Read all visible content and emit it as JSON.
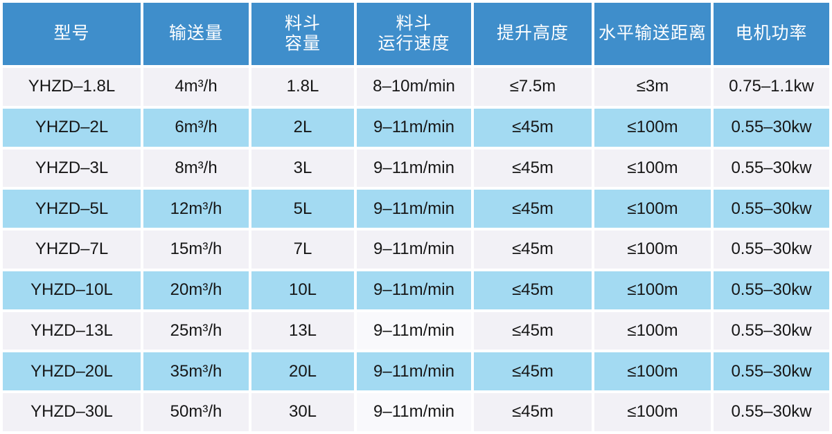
{
  "chart_data": {
    "type": "table",
    "columns": [
      "型号",
      "输送量",
      "料斗容量",
      "料斗运行速度",
      "提升高度",
      "水平输送距离",
      "电机功率"
    ],
    "rows": [
      [
        "YHZD–1.8L",
        "4m³/h",
        "1.8L",
        "8–10m/min",
        "≤7.5m",
        "≤3m",
        "0.75–1.1kw"
      ],
      [
        "YHZD–2L",
        "6m³/h",
        "2L",
        "9–11m/min",
        "≤45m",
        "≤100m",
        "0.55–30kw"
      ],
      [
        "YHZD–3L",
        "8m³/h",
        "3L",
        "9–11m/min",
        "≤45m",
        "≤100m",
        "0.55–30kw"
      ],
      [
        "YHZD–5L",
        "12m³/h",
        "5L",
        "9–11m/min",
        "≤45m",
        "≤100m",
        "0.55–30kw"
      ],
      [
        "YHZD–7L",
        "15m³/h",
        "7L",
        "9–11m/min",
        "≤45m",
        "≤100m",
        "0.55–30kw"
      ],
      [
        "YHZD–10L",
        "20m³/h",
        "10L",
        "9–11m/min",
        "≤45m",
        "≤100m",
        "0.55–30kw"
      ],
      [
        "YHZD–13L",
        "25m³/h",
        "13L",
        "9–11m/min",
        "≤45m",
        "≤100m",
        "0.55–30kw"
      ],
      [
        "YHZD–20L",
        "35m³/h",
        "20L",
        "9–11m/min",
        "≤45m",
        "≤100m",
        "0.55–30kw"
      ],
      [
        "YHZD–30L",
        "50m³/h",
        "30L",
        "9–11m/min",
        "≤45m",
        "≤100m",
        "0.55–30kw"
      ]
    ]
  },
  "table": {
    "header": {
      "model": "型号",
      "capacity": "输送量",
      "hopper_volume": "料斗\n容量",
      "hopper_speed": "料斗\n运行速度",
      "lift_height": "提升高度",
      "horizontal_distance": "水平输送距离",
      "motor_power": "电机功率"
    },
    "rows": [
      {
        "tint": "white",
        "light_speed_cell": false,
        "cells": [
          "YHZD–1.8L",
          "4m³/h",
          "1.8L",
          "8–10m/min",
          "≤7.5m",
          "≤3m",
          "0.75–1.1kw"
        ]
      },
      {
        "tint": "blue",
        "light_speed_cell": false,
        "cells": [
          "YHZD–2L",
          "6m³/h",
          "2L",
          "9–11m/min",
          "≤45m",
          "≤100m",
          "0.55–30kw"
        ]
      },
      {
        "tint": "white",
        "light_speed_cell": false,
        "cells": [
          "YHZD–3L",
          "8m³/h",
          "3L",
          "9–11m/min",
          "≤45m",
          "≤100m",
          "0.55–30kw"
        ]
      },
      {
        "tint": "blue",
        "light_speed_cell": false,
        "cells": [
          "YHZD–5L",
          "12m³/h",
          "5L",
          "9–11m/min",
          "≤45m",
          "≤100m",
          "0.55–30kw"
        ]
      },
      {
        "tint": "white",
        "light_speed_cell": false,
        "cells": [
          "YHZD–7L",
          "15m³/h",
          "7L",
          "9–11m/min",
          "≤45m",
          "≤100m",
          "0.55–30kw"
        ]
      },
      {
        "tint": "blue",
        "light_speed_cell": false,
        "cells": [
          "YHZD–10L",
          "20m³/h",
          "10L",
          "9–11m/min",
          "≤45m",
          "≤100m",
          "0.55–30kw"
        ]
      },
      {
        "tint": "white",
        "light_speed_cell": true,
        "cells": [
          "YHZD–13L",
          "25m³/h",
          "13L",
          "9–11m/min",
          "≤45m",
          "≤100m",
          "0.55–30kw"
        ]
      },
      {
        "tint": "blue",
        "light_speed_cell": false,
        "cells": [
          "YHZD–20L",
          "35m³/h",
          "20L",
          "9–11m/min",
          "≤45m",
          "≤100m",
          "0.55–30kw"
        ]
      },
      {
        "tint": "white",
        "light_speed_cell": true,
        "cells": [
          "YHZD–30L",
          "50m³/h",
          "30L",
          "9–11m/min",
          "≤45m",
          "≤100m",
          "0.55–30kw"
        ]
      }
    ]
  },
  "colors": {
    "header_bg": "#3f8ecb",
    "header_text": "#ffffff",
    "row_blue_bg": "#a3daf2",
    "row_white_bg": "#f2f1f6",
    "speed_cell_light_bg": "#f9f9fc",
    "cell_text": "#161616",
    "divider": "#ffffff"
  }
}
